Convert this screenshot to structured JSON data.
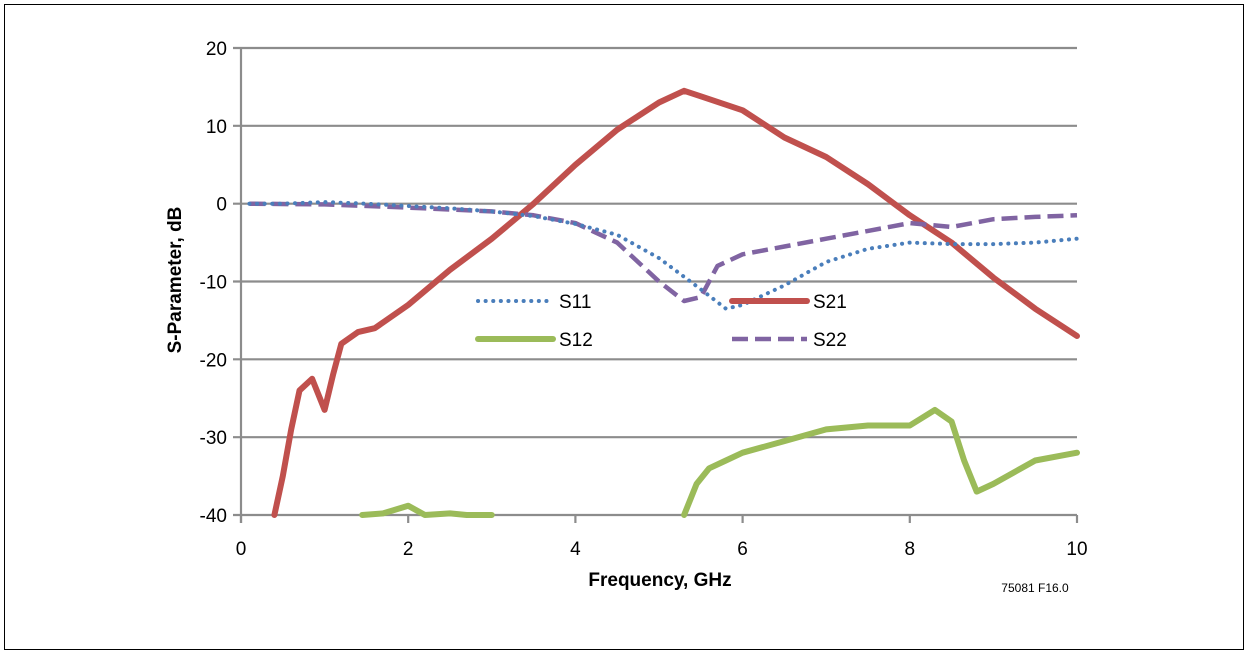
{
  "chart_data": {
    "type": "line",
    "title": "",
    "xlabel": "Frequency, GHz",
    "ylabel": "S-Parameter, dB",
    "xlim": [
      0,
      10
    ],
    "ylim": [
      -40,
      20
    ],
    "xticks": [
      0,
      2,
      4,
      6,
      8,
      10
    ],
    "yticks": [
      20,
      10,
      0,
      -10,
      -20,
      -30,
      -40
    ],
    "grid": "horizontal",
    "legend_position": "center",
    "figure_id": "75081 F16.0",
    "series": [
      {
        "name": "S11",
        "style": "dotted",
        "color": "#4A7EBB",
        "x": [
          0.1,
          0.5,
          1.0,
          1.5,
          2.0,
          2.5,
          3.0,
          3.5,
          4.0,
          4.5,
          5.0,
          5.5,
          5.8,
          6.0,
          6.5,
          7.0,
          7.5,
          8.0,
          8.5,
          9.0,
          9.5,
          10.0
        ],
        "y": [
          0,
          0,
          0.2,
          0,
          -0.3,
          -0.6,
          -1.0,
          -1.6,
          -2.6,
          -4.0,
          -7.0,
          -11.0,
          -13.5,
          -13.0,
          -10.5,
          -7.5,
          -5.8,
          -5.0,
          -5.2,
          -5.2,
          -5.0,
          -4.5
        ]
      },
      {
        "name": "S21",
        "style": "solid",
        "color": "#C0504D",
        "x": [
          0.4,
          0.5,
          0.6,
          0.7,
          0.85,
          1.0,
          1.1,
          1.2,
          1.4,
          1.6,
          2.0,
          2.5,
          3.0,
          3.5,
          4.0,
          4.5,
          5.0,
          5.3,
          5.5,
          6.0,
          6.5,
          7.0,
          7.5,
          8.0,
          8.5,
          9.0,
          9.5,
          10.0
        ],
        "y": [
          -40,
          -35,
          -29,
          -24,
          -22.5,
          -26.5,
          -22,
          -18,
          -16.5,
          -16,
          -13,
          -8.5,
          -4.5,
          0,
          5,
          9.5,
          13,
          14.5,
          13.8,
          12,
          8.5,
          6,
          2.5,
          -1.5,
          -5,
          -9.5,
          -13.5,
          -17
        ]
      },
      {
        "name": "S12",
        "style": "solid",
        "color": "#9BBB59",
        "segments": [
          {
            "x": [
              1.45,
              1.7,
              2.0,
              2.2,
              2.5,
              2.7,
              3.0
            ],
            "y": [
              -40,
              -39.8,
              -38.8,
              -40,
              -39.8,
              -40,
              -40
            ]
          },
          {
            "x": [
              5.3,
              5.45,
              5.6,
              5.8,
              6.0,
              6.5,
              7.0,
              7.5,
              8.0,
              8.3,
              8.5,
              8.65,
              8.8,
              9.0,
              9.5,
              10.0
            ],
            "y": [
              -40,
              -36,
              -34,
              -33,
              -32,
              -30.5,
              -29,
              -28.5,
              -28.5,
              -26.5,
              -28,
              -33,
              -37,
              -36,
              -33,
              -32
            ]
          }
        ]
      },
      {
        "name": "S22",
        "style": "dashed",
        "color": "#8064A2",
        "x": [
          0.1,
          1.0,
          2.0,
          3.0,
          3.5,
          4.0,
          4.5,
          5.0,
          5.3,
          5.5,
          5.7,
          6.0,
          6.5,
          7.0,
          7.5,
          8.0,
          8.5,
          9.0,
          9.5,
          10.0
        ],
        "y": [
          0,
          -0.1,
          -0.5,
          -1.0,
          -1.5,
          -2.5,
          -5.0,
          -10.0,
          -12.5,
          -12.0,
          -8.0,
          -6.5,
          -5.5,
          -4.5,
          -3.5,
          -2.5,
          -3.0,
          -2.0,
          -1.7,
          -1.5
        ]
      }
    ]
  }
}
